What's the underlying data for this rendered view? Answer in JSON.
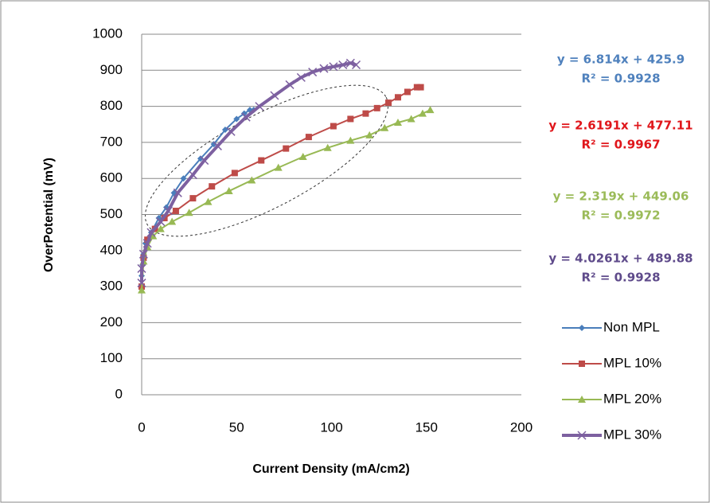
{
  "chart_data": {
    "type": "scatter-line",
    "x_label": "Current Density (mA/cm2)",
    "y_label": "OverPotential (mV)",
    "xlim": [
      0,
      200
    ],
    "xticks": [
      0,
      50,
      100,
      150,
      200
    ],
    "ylim": [
      0,
      1000
    ],
    "yticks": [
      0,
      100,
      200,
      300,
      400,
      500,
      600,
      700,
      800,
      900,
      1000
    ],
    "grid": true,
    "legend": "lower right",
    "series": [
      {
        "name": "Non MPL",
        "color": "#4a7ebb",
        "marker": "diamond",
        "x": [
          0,
          0,
          0.5,
          1,
          2,
          5,
          9,
          13,
          17,
          22,
          31,
          38,
          44,
          50,
          54,
          57,
          59
        ],
        "values": [
          300,
          330,
          360,
          390,
          420,
          450,
          490,
          520,
          560,
          600,
          655,
          695,
          735,
          765,
          780,
          790,
          790
        ]
      },
      {
        "name": "MPL 10%",
        "color": "#be4b48",
        "marker": "square",
        "x": [
          0,
          1,
          3,
          7,
          12,
          18,
          27,
          37,
          49,
          63,
          76,
          88,
          101,
          110,
          118,
          124,
          130,
          135,
          140,
          145,
          147
        ],
        "values": [
          300,
          380,
          430,
          460,
          490,
          510,
          545,
          578,
          615,
          650,
          683,
          715,
          745,
          765,
          780,
          795,
          810,
          825,
          840,
          853,
          853
        ]
      },
      {
        "name": "MPL 20%",
        "color": "#98b954",
        "marker": "triangle",
        "x": [
          0,
          1,
          3,
          6,
          10,
          16,
          25,
          35,
          46,
          58,
          72,
          85,
          98,
          110,
          120,
          128,
          135,
          142,
          148,
          152
        ],
        "values": [
          290,
          370,
          410,
          440,
          460,
          480,
          505,
          535,
          565,
          595,
          630,
          660,
          685,
          705,
          720,
          740,
          755,
          765,
          780,
          790
        ]
      },
      {
        "name": "MPL 30%",
        "color": "#7d60a0",
        "marker": "x",
        "x": [
          0,
          0,
          1,
          3,
          5,
          10,
          14,
          19,
          27,
          33,
          40,
          47,
          55,
          62,
          70,
          78,
          84,
          90,
          96,
          101,
          106,
          110,
          113
        ],
        "values": [
          310,
          350,
          390,
          420,
          450,
          480,
          510,
          560,
          610,
          650,
          690,
          730,
          770,
          800,
          830,
          860,
          880,
          895,
          905,
          910,
          915,
          920,
          915
        ]
      }
    ],
    "annotations": [
      {
        "lines": [
          "y = 6.814x + 425.9",
          "R² = 0.9928"
        ],
        "color": "#4f81bd"
      },
      {
        "lines": [
          "y = 2.6191x + 477.11",
          "R² = 0.9967"
        ],
        "color": "#e0161b"
      },
      {
        "lines": [
          "y = 2.319x + 449.06",
          "R² = 0.9972"
        ],
        "color": "#9bbb59"
      },
      {
        "lines": [
          "y = 4.0261x + 489.88",
          "R² = 0.9928"
        ],
        "color": "#5f4b8b"
      }
    ]
  }
}
